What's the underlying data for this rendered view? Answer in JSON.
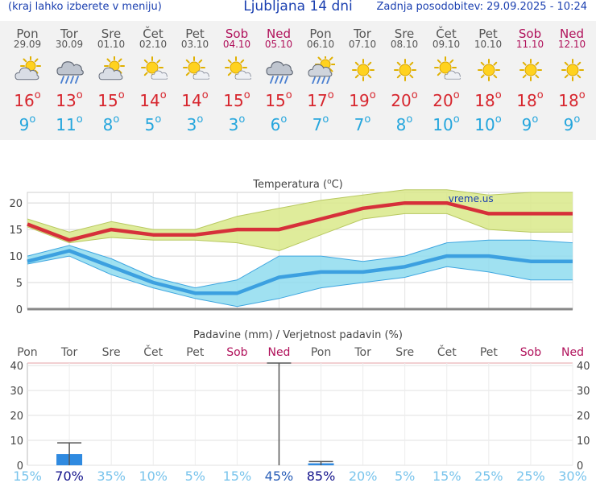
{
  "header": {
    "hint": "(kraj lahko izberete v meniju)",
    "title": "Ljubljana 14 dni",
    "updated": "Zadnja posodobitev: 29.09.2025 - 10:24"
  },
  "days": [
    {
      "name": "Pon",
      "date": "29.09",
      "weekend": false,
      "icon": "partly-cloudy",
      "max": "16",
      "min": "9"
    },
    {
      "name": "Tor",
      "date": "30.09",
      "weekend": false,
      "icon": "rain-cloud",
      "max": "13",
      "min": "11"
    },
    {
      "name": "Sre",
      "date": "01.10",
      "weekend": false,
      "icon": "partly-cloudy",
      "max": "15",
      "min": "8"
    },
    {
      "name": "Čet",
      "date": "02.10",
      "weekend": false,
      "icon": "sun-small-cloud",
      "max": "14",
      "min": "5"
    },
    {
      "name": "Pet",
      "date": "03.10",
      "weekend": false,
      "icon": "sun-small-cloud",
      "max": "14",
      "min": "3"
    },
    {
      "name": "Sob",
      "date": "04.10",
      "weekend": true,
      "icon": "sun-small-cloud",
      "max": "15",
      "min": "3"
    },
    {
      "name": "Ned",
      "date": "05.10",
      "weekend": true,
      "icon": "rain-cloud",
      "max": "15",
      "min": "6"
    },
    {
      "name": "Pon",
      "date": "06.10",
      "weekend": false,
      "icon": "sun-rain-cloud",
      "max": "17",
      "min": "7"
    },
    {
      "name": "Tor",
      "date": "07.10",
      "weekend": false,
      "icon": "sun",
      "max": "19",
      "min": "7"
    },
    {
      "name": "Sre",
      "date": "08.10",
      "weekend": false,
      "icon": "sun",
      "max": "20",
      "min": "8"
    },
    {
      "name": "Čet",
      "date": "09.10",
      "weekend": false,
      "icon": "sun-small-cloud",
      "max": "20",
      "min": "10"
    },
    {
      "name": "Pet",
      "date": "10.10",
      "weekend": false,
      "icon": "sun",
      "max": "18",
      "min": "10"
    },
    {
      "name": "Sob",
      "date": "11.10",
      "weekend": true,
      "icon": "sun",
      "max": "18",
      "min": "9"
    },
    {
      "name": "Ned",
      "date": "12.10",
      "weekend": true,
      "icon": "sun",
      "max": "18",
      "min": "9"
    }
  ],
  "colors": {
    "max": "#d7262e",
    "min": "#25a6dd",
    "weekend": "#b0105a",
    "header": "#1a3fb0"
  },
  "chart_data": [
    {
      "type": "line",
      "title": "Temperatura (°C)",
      "watermark": "vreme.us",
      "categories": [
        "29.09",
        "30.09",
        "01.10",
        "02.10",
        "03.10",
        "04.10",
        "05.10",
        "06.10",
        "07.10",
        "08.10",
        "09.10",
        "10.10",
        "11.10",
        "12.10"
      ],
      "ylim": [
        0,
        22
      ],
      "yticks": [
        0,
        5,
        10,
        15,
        20
      ],
      "series": [
        {
          "name": "max",
          "values": [
            16,
            13,
            15,
            14,
            14,
            15,
            15,
            17,
            19,
            20,
            20,
            18,
            18,
            18
          ]
        },
        {
          "name": "min",
          "values": [
            9,
            11,
            8,
            5,
            3,
            3,
            6,
            7,
            7,
            8,
            10,
            10,
            9,
            9
          ]
        }
      ],
      "bands": [
        {
          "name": "max-range",
          "upper": [
            17,
            14.5,
            16.5,
            15,
            15,
            17.5,
            19,
            20.5,
            21.5,
            22.5,
            22.5,
            21.5,
            22,
            22
          ],
          "lower": [
            15.5,
            12.5,
            13.5,
            13,
            13,
            12.5,
            11,
            14,
            17,
            18,
            18,
            15,
            14.5,
            14.5
          ]
        },
        {
          "name": "min-range",
          "upper": [
            10,
            12,
            9.5,
            6,
            4,
            5.5,
            10,
            10,
            9,
            10,
            12.5,
            13,
            13,
            12.5
          ],
          "lower": [
            8.5,
            10,
            6.5,
            4,
            2,
            0.5,
            2,
            4,
            5,
            6,
            8,
            7,
            5.5,
            5.5
          ]
        }
      ]
    },
    {
      "type": "bar",
      "title": "Padavine (mm) / Verjetnost padavin (%)",
      "categories": [
        "Pon",
        "Tor",
        "Sre",
        "Čet",
        "Pet",
        "Sob",
        "Ned",
        "Pon",
        "Tor",
        "Sre",
        "Čet",
        "Pet",
        "Sob",
        "Ned"
      ],
      "weekend": [
        false,
        false,
        false,
        false,
        false,
        true,
        true,
        false,
        false,
        false,
        false,
        false,
        true,
        true
      ],
      "ylim": [
        0,
        41
      ],
      "yticks": [
        0,
        10,
        20,
        30,
        40
      ],
      "values": [
        0,
        4.5,
        0,
        0,
        0,
        0,
        0,
        0.8,
        0,
        0,
        0,
        0,
        0,
        0
      ],
      "ranges": [
        null,
        [
          0,
          9
        ],
        null,
        null,
        null,
        null,
        [
          0,
          41
        ],
        [
          0,
          1.5
        ],
        null,
        null,
        null,
        null,
        null,
        null
      ],
      "probability": [
        "15%",
        "70%",
        "35%",
        "10%",
        "5%",
        "15%",
        "45%",
        "85%",
        "20%",
        "5%",
        "15%",
        "25%",
        "25%",
        "30%"
      ]
    }
  ]
}
